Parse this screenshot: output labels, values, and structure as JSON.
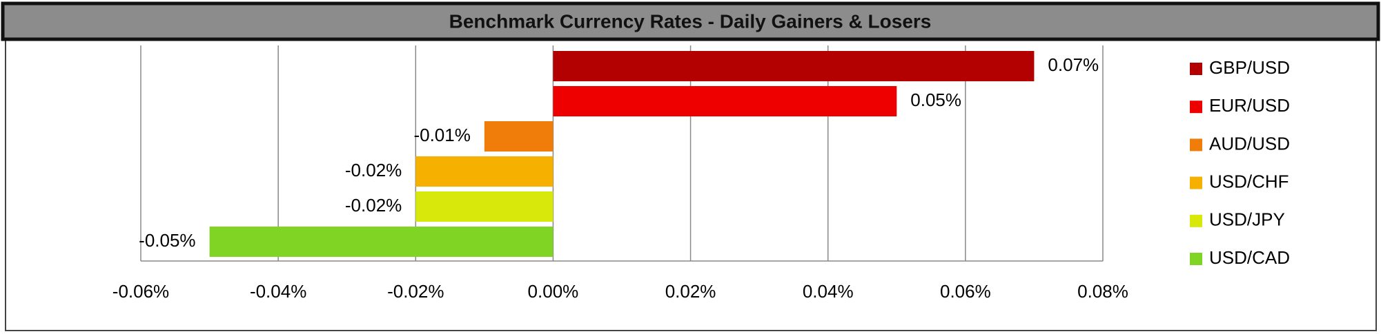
{
  "chart_data": {
    "type": "bar",
    "orientation": "horizontal",
    "title": "Benchmark Currency Rates - Daily Gainers & Losers",
    "series": [
      {
        "name": "GBP/USD",
        "color": "#b30000",
        "values": [
          0.07
        ],
        "value_labels": [
          "0.07%"
        ]
      },
      {
        "name": "EUR/USD",
        "color": "#ee0000",
        "values": [
          0.05
        ],
        "value_labels": [
          "0.05%"
        ]
      },
      {
        "name": "AUD/USD",
        "color": "#f07d0a",
        "values": [
          -0.01
        ],
        "value_labels": [
          "-0.01%"
        ]
      },
      {
        "name": "USD/CHF",
        "color": "#f5b000",
        "values": [
          -0.02
        ],
        "value_labels": [
          "-0.02%"
        ]
      },
      {
        "name": "USD/JPY",
        "color": "#d7e80a",
        "values": [
          -0.02
        ],
        "value_labels": [
          "-0.02%"
        ]
      },
      {
        "name": "USD/CAD",
        "color": "#80d424",
        "values": [
          -0.05
        ],
        "value_labels": [
          "-0.05%"
        ]
      }
    ],
    "xlim": [
      -0.06,
      0.08
    ],
    "xticks": [
      {
        "value": -0.06,
        "label": "-0.06%"
      },
      {
        "value": -0.04,
        "label": "-0.04%"
      },
      {
        "value": -0.02,
        "label": "-0.02%"
      },
      {
        "value": 0,
        "label": "0.00%"
      },
      {
        "value": 0.02,
        "label": "0.02%"
      },
      {
        "value": 0.04,
        "label": "0.04%"
      },
      {
        "value": 0.06,
        "label": "0.06%"
      },
      {
        "value": 0.08,
        "label": "0.08%"
      }
    ],
    "grid": true,
    "legend": "right"
  }
}
